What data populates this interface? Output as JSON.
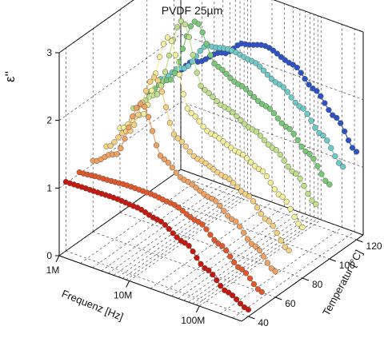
{
  "chart_data": {
    "type": "scatter",
    "title": "PVDF 25µm",
    "xlabel": "Frequenz [Hz]",
    "ylabel": "Temperatur [°C]",
    "zlabel": "ε''",
    "x_scale": "log",
    "x_ticks": [
      "1M",
      "10M",
      "100M"
    ],
    "xlim": [
      1000000,
      400000000
    ],
    "y_ticks": [
      "40",
      "60",
      "80",
      "100",
      "120"
    ],
    "ylim": [
      35,
      125
    ],
    "z_ticks": [
      "0",
      "1",
      "2",
      "3"
    ],
    "zlim": [
      0,
      3
    ],
    "grid": true,
    "series": [
      {
        "temperature": 40,
        "color": "#c8170c",
        "x": [
          1000000,
          2000000,
          5000000,
          10000000,
          20000000,
          50000000,
          100000000,
          200000000,
          400000000
        ],
        "values": [
          1.02,
          1.03,
          1.04,
          1.02,
          0.95,
          0.75,
          0.48,
          0.25,
          0.1
        ]
      },
      {
        "temperature": 50,
        "color": "#e2582a",
        "x": [
          1000000,
          2000000,
          5000000,
          10000000,
          20000000,
          50000000,
          100000000,
          200000000,
          400000000
        ],
        "values": [
          1.02,
          1.05,
          1.08,
          1.08,
          1.05,
          0.92,
          0.7,
          0.45,
          0.22
        ]
      },
      {
        "temperature": 60,
        "color": "#f0a060",
        "x": [
          1000000,
          2000000,
          5000000,
          10000000,
          20000000,
          50000000,
          100000000,
          200000000,
          400000000
        ],
        "values": [
          1.05,
          1.25,
          2.15,
          1.45,
          1.25,
          1.12,
          0.92,
          0.65,
          0.38
        ]
      },
      {
        "temperature": 70,
        "color": "#f6d080",
        "x": [
          1000000,
          2000000,
          5000000,
          10000000,
          20000000,
          50000000,
          100000000,
          200000000,
          400000000
        ],
        "values": [
          1.12,
          1.45,
          2.4,
          1.62,
          1.42,
          1.3,
          1.15,
          0.88,
          0.55
        ]
      },
      {
        "temperature": 80,
        "color": "#f4f09a",
        "x": [
          1000000,
          2000000,
          5000000,
          10000000,
          20000000,
          50000000,
          100000000,
          200000000,
          400000000
        ],
        "values": [
          1.25,
          1.55,
          2.85,
          1.85,
          1.65,
          1.52,
          1.38,
          1.1,
          0.75
        ]
      },
      {
        "temperature": 90,
        "color": "#bfe08a",
        "x": [
          1000000,
          2000000,
          5000000,
          10000000,
          20000000,
          50000000,
          100000000,
          200000000,
          400000000
        ],
        "values": [
          1.4,
          1.7,
          2.95,
          2.05,
          1.9,
          1.72,
          1.55,
          1.3,
          0.95
        ]
      },
      {
        "temperature": 100,
        "color": "#78c878",
        "x": [
          1000000,
          2000000,
          5000000,
          10000000,
          20000000,
          50000000,
          100000000,
          200000000,
          400000000
        ],
        "values": [
          1.5,
          1.78,
          2.8,
          2.25,
          2.1,
          1.92,
          1.72,
          1.45,
          1.1
        ]
      },
      {
        "temperature": 110,
        "color": "#6ccac8",
        "x": [
          1000000,
          2000000,
          5000000,
          10000000,
          20000000,
          50000000,
          100000000,
          200000000,
          400000000
        ],
        "values": [
          1.55,
          1.82,
          2.3,
          2.35,
          2.3,
          2.1,
          1.88,
          1.58,
          1.22
        ]
      },
      {
        "temperature": 120,
        "color": "#2c52c8",
        "x": [
          1000000,
          2000000,
          5000000,
          10000000,
          20000000,
          50000000,
          100000000,
          200000000,
          400000000
        ],
        "values": [
          1.5,
          1.78,
          2.05,
          2.3,
          2.38,
          2.25,
          2.0,
          1.7,
          1.3
        ]
      }
    ]
  }
}
